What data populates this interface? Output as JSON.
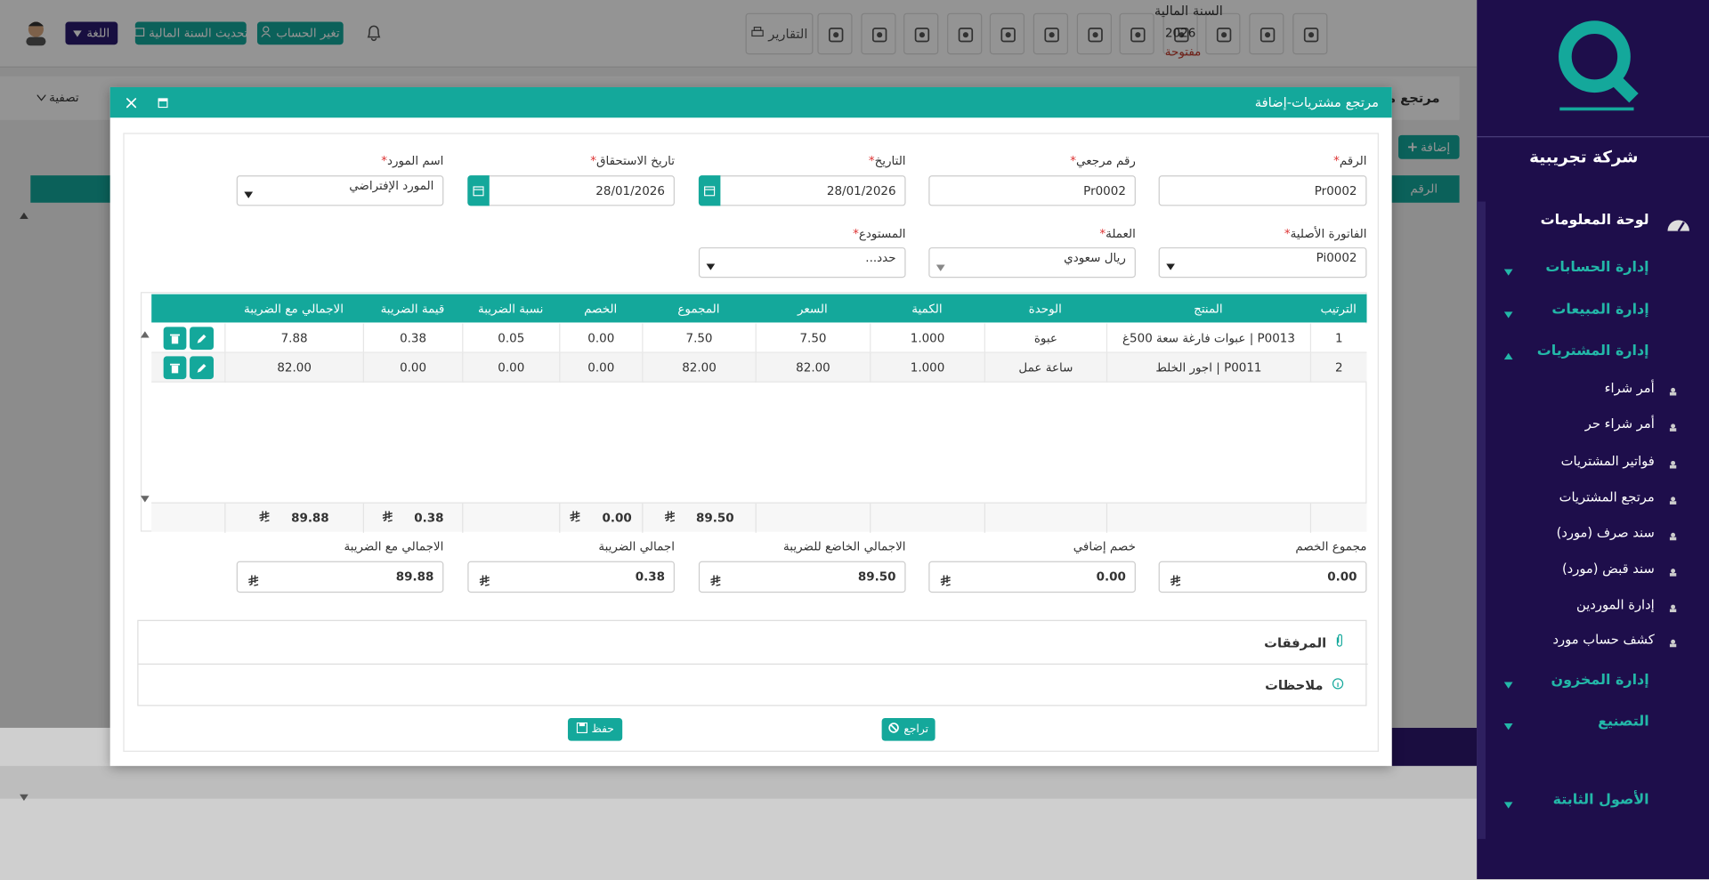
{
  "header": {
    "fiscal_year_label": "السنة المالية",
    "fiscal_year": "2026",
    "fiscal_status": "مفتوحة",
    "reports": "التقارير",
    "change_account": "تغير الحساب",
    "update_year": "تحديث السنة المالية",
    "language": "اللغة"
  },
  "sidebar": {
    "company": "شركة تجريبية",
    "dashboard": "لوحة المعلومات",
    "menu": [
      {
        "text": "إدارة الحسابات",
        "type": "main"
      },
      {
        "text": "إدارة المبيعات",
        "type": "main"
      },
      {
        "text": "إدارة المشتريات",
        "type": "main"
      },
      {
        "text": "أمر شراء",
        "type": "sub"
      },
      {
        "text": "أمر شراء حر",
        "type": "sub"
      },
      {
        "text": "فواتير المشتريات",
        "type": "sub"
      },
      {
        "text": "مرتجع المشتريات",
        "type": "sub"
      },
      {
        "text": "سند صرف (مورد)",
        "type": "sub"
      },
      {
        "text": "سند قبض (مورد)",
        "type": "sub"
      },
      {
        "text": "إدارة الموردين",
        "type": "sub"
      },
      {
        "text": "كشف حساب مورد",
        "type": "sub"
      },
      {
        "text": "إدارة المخزون",
        "type": "main"
      },
      {
        "text": "التصنيع",
        "type": "main"
      },
      {
        "text": "الأصول الثابتة",
        "type": "main"
      }
    ]
  },
  "background": {
    "page_title": "مرتجع مش",
    "filter": "تصفية",
    "add": "إضافة",
    "first_column": "الرقم"
  },
  "modal": {
    "title": "مرتجع مشتريات-إضافة",
    "required_mark": "*",
    "fields": [
      {
        "label": "الرقم",
        "value": "Pr0002",
        "required": true
      },
      {
        "label": "رقم مرجعي",
        "value": "Pr0002",
        "required": true
      },
      {
        "label": "التاريخ",
        "value": "28/01/2026",
        "required": true
      },
      {
        "label": "تاريخ الاستحقاق",
        "value": "28/01/2026",
        "required": true
      },
      {
        "label": "اسم المورد",
        "value": "المورد الإفتراضي",
        "required": true
      },
      {
        "label": "الفاتورة الأصلية",
        "value": "Pi0002",
        "required": true
      },
      {
        "label": "العملة",
        "value": "ريال سعودي",
        "required": true
      },
      {
        "label": "المستودع",
        "value": "حدد...",
        "required": true
      }
    ],
    "table": {
      "headers": [
        "الترتيب",
        "المنتج",
        "الوحدة",
        "الكمية",
        "السعر",
        "المجموع",
        "الخصم",
        "نسبة الضريبة",
        "قيمة الضريبة",
        "الاجمالي مع الضريبة"
      ],
      "rows": [
        [
          "1",
          "P0013 | عبوات فارغة سعة 500غ",
          "عبوة",
          "1.000",
          "7.50",
          "7.50",
          "0.00",
          "0.05",
          "0.38",
          "7.88"
        ],
        [
          "2",
          "P0011 | اجور الخلط",
          "ساعة عمل",
          "1.000",
          "82.00",
          "82.00",
          "0.00",
          "0.00",
          "0.00",
          "82.00"
        ]
      ],
      "totals": [
        null,
        null,
        null,
        null,
        null,
        "89.50",
        "0.00",
        null,
        "0.38",
        "89.88"
      ]
    },
    "summary": [
      {
        "label": "مجموع الخصم",
        "value": "0.00"
      },
      {
        "label": "خصم إضافي",
        "value": "0.00"
      },
      {
        "label": "الاجمالي الخاضع للضريبة",
        "value": "89.50"
      },
      {
        "label": "اجمالي الضريبة",
        "value": "0.38"
      },
      {
        "label": "الاجمالي مع الضريبة",
        "value": "89.88"
      }
    ],
    "sections": [
      "المرفقات",
      "ملاحظات"
    ],
    "buttons": {
      "back": "تراجع",
      "save": "حفظ"
    }
  }
}
